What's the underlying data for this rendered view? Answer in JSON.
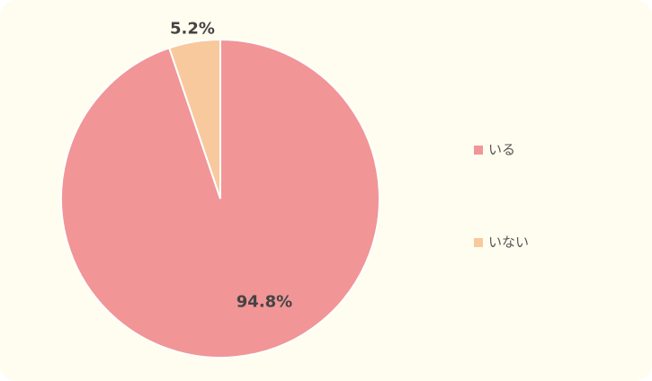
{
  "chart_data": {
    "type": "pie",
    "categories": [
      "いる",
      "いない"
    ],
    "values": [
      94.8,
      5.2
    ],
    "value_labels": [
      "94.8%",
      "5.2%"
    ],
    "colors": [
      "#f19597",
      "#f8c99d"
    ],
    "legend": "right"
  }
}
